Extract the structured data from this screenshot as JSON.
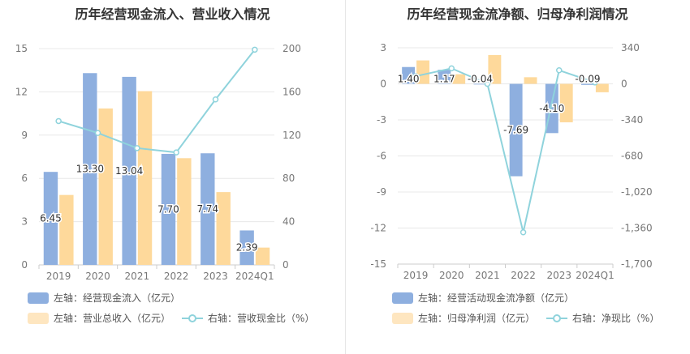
{
  "colors": {
    "bar1": "#8eafdf",
    "bar2": "#fed99b",
    "line": "#8fd3dc",
    "grid": "#e8e8e8",
    "axis_text": "#777777"
  },
  "left": {
    "title": "历年经营现金流入、营业收入情况",
    "legend": {
      "s1": "左轴：经营现金流入（亿元）",
      "s2": "左轴：营业总收入（亿元）",
      "s3": "右轴：营收现金比（%）"
    }
  },
  "right": {
    "title": "历年经营现金流净额、归母净利润情况",
    "legend": {
      "s1": "左轴：经营活动现金流净额（亿元）",
      "s2": "左轴：归母净利润（亿元）",
      "s3": "右轴：净现比（%）"
    }
  },
  "chart_data": [
    {
      "type": "bar",
      "categories": [
        "2019",
        "2020",
        "2021",
        "2022",
        "2023",
        "2024Q1"
      ],
      "left_axis": {
        "ticks": [
          "0",
          "3",
          "6",
          "9",
          "12",
          "15"
        ],
        "ylim": [
          0,
          15
        ]
      },
      "right_axis": {
        "ticks": [
          "0",
          "40",
          "80",
          "120",
          "160",
          "200"
        ],
        "ylim": [
          0,
          200
        ]
      },
      "series": [
        {
          "name": "左轴：经营现金流入（亿元）",
          "axis": "left",
          "kind": "bar",
          "values": [
            6.45,
            13.3,
            13.04,
            7.7,
            7.74,
            2.39
          ],
          "labels": [
            "6.45",
            "13.30",
            "13.04",
            "7.70",
            "7.74",
            "2.39"
          ]
        },
        {
          "name": "左轴：营业总收入（亿元）",
          "axis": "left",
          "kind": "bar",
          "values": [
            4.85,
            10.85,
            12.05,
            7.4,
            5.05,
            1.2
          ]
        },
        {
          "name": "右轴：营收现金比（%）",
          "axis": "right",
          "kind": "line",
          "values": [
            133,
            122,
            108,
            104,
            153,
            199
          ]
        }
      ]
    },
    {
      "type": "bar",
      "categories": [
        "2019",
        "2020",
        "2021",
        "2022",
        "2023",
        "2024Q1"
      ],
      "left_axis": {
        "ticks": [
          "-15",
          "-12",
          "-9",
          "-6",
          "-3",
          "0",
          "3"
        ],
        "ylim": [
          -15,
          3
        ]
      },
      "right_axis": {
        "ticks": [
          "-1,700",
          "-1,360",
          "-1,020",
          "-680",
          "-340",
          "0",
          "340"
        ],
        "ylim": [
          -1700,
          340
        ]
      },
      "series": [
        {
          "name": "左轴：经营活动现金流净额（亿元）",
          "axis": "left",
          "kind": "bar",
          "values": [
            1.4,
            1.17,
            -0.04,
            -7.69,
            -4.1,
            -0.09
          ],
          "labels": [
            "1.40",
            "1.17",
            "-0.04",
            "-7.69",
            "-4.10",
            "-0.09"
          ]
        },
        {
          "name": "左轴：归母净利润（亿元）",
          "axis": "left",
          "kind": "bar",
          "values": [
            1.95,
            0.8,
            2.4,
            0.55,
            -3.2,
            -0.7
          ]
        },
        {
          "name": "右轴：净现比（%）",
          "axis": "right",
          "kind": "line",
          "values": [
            72,
            146,
            0,
            -1400,
            128,
            13
          ]
        }
      ]
    }
  ]
}
